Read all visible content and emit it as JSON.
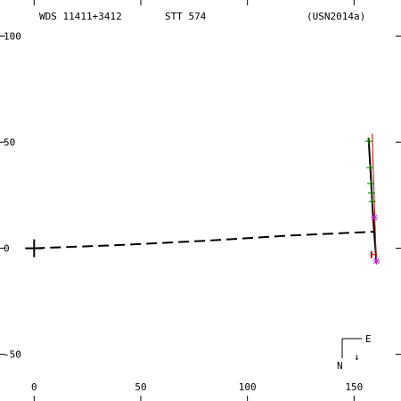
{
  "header": {
    "left": "WDS 11411+3412",
    "center": "STT 574",
    "right": "(USN2014a)"
  },
  "chart_data": {
    "type": "scatter",
    "title": "",
    "xlabel": "",
    "ylabel": "",
    "xlim": [
      -16,
      172
    ],
    "ylim": [
      -72,
      117
    ],
    "grid": false,
    "legend": "none",
    "x_ticks": [
      0,
      50,
      100,
      150
    ],
    "y_ticks": [
      100,
      50,
      0,
      -50
    ],
    "x_tick_labels": [
      "0",
      "50",
      "100",
      "150"
    ],
    "y_tick_labels": [
      "100",
      "50",
      "0",
      "-50"
    ],
    "primary": {
      "x": 0,
      "y": 0
    },
    "orbit": {
      "color": "#000000",
      "solid": [
        [
          156.8,
          52.0
        ],
        [
          157.8,
          35.0
        ],
        [
          158.6,
          20.0
        ],
        [
          159.4,
          8.0
        ],
        [
          160.1,
          -1.0
        ],
        [
          160.4,
          -7.0
        ]
      ],
      "dashed": [
        [
          0.0,
          0.0
        ],
        [
          40.0,
          1.5
        ],
        [
          80.0,
          3.5
        ],
        [
          120.0,
          6.0
        ],
        [
          159.4,
          7.8
        ]
      ]
    },
    "fit_line": {
      "color": "#cc0000",
      "points": [
        [
          158.5,
          54.0
        ],
        [
          158.9,
          40.0
        ],
        [
          159.4,
          25.0
        ],
        [
          159.8,
          12.0
        ],
        [
          160.2,
          0.0
        ],
        [
          160.4,
          -7.0
        ]
      ]
    },
    "observations_green": {
      "color": "#007700",
      "points": [
        [
          156.8,
          50.5
        ],
        [
          157.4,
          38.0
        ],
        [
          157.8,
          30.5
        ],
        [
          158.2,
          26.0
        ],
        [
          158.5,
          22.0
        ]
      ]
    },
    "markers_magenta": {
      "color": "#bb33bb",
      "points": [
        [
          159.5,
          14.5
        ],
        [
          160.5,
          -6.0
        ]
      ]
    },
    "markers_red": {
      "color": "#cc0000",
      "points": [
        [
          159.4,
          -3.0
        ]
      ]
    },
    "orientation": {
      "north": "N",
      "east": "E",
      "arrow": "↓"
    }
  }
}
